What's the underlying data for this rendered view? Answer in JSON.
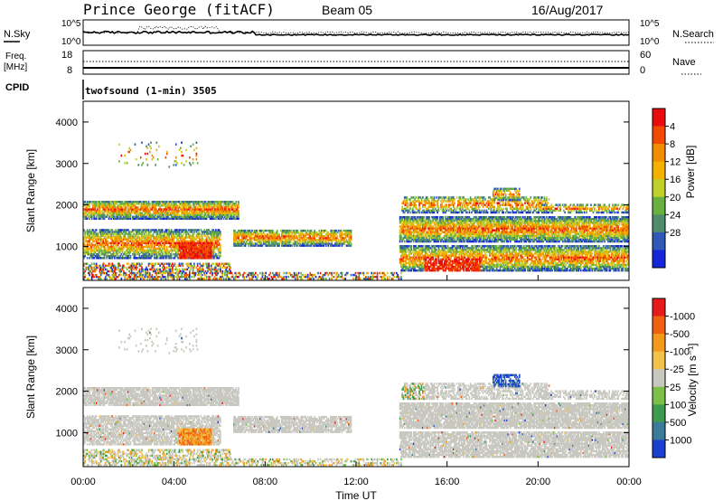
{
  "header": {
    "station": "Prince George (fitACF)",
    "beam": "Beam 05",
    "date": "16/Aug/2017"
  },
  "panel_nsky": {
    "left_label": "N.Sky",
    "right_label": "N.Search",
    "left_ticks": [
      "10^5",
      "10^0"
    ],
    "right_ticks": [
      "10^5",
      "10^0"
    ]
  },
  "panel_freq": {
    "left_label_1": "Freq.",
    "left_label_2": "[MHz]",
    "right_label": "Nave",
    "left_ticks": [
      "18",
      "8"
    ],
    "right_ticks": [
      "60",
      "0"
    ]
  },
  "cpid": {
    "label": "CPID",
    "value": "twofsound (1-min) 3505"
  },
  "chart_data": [
    {
      "type": "heatmap",
      "name": "power",
      "ylabel": "Slant Range [km]",
      "xlabel": "",
      "xlim": [
        "00:00",
        "24:00"
      ],
      "ylim": [
        180,
        4500
      ],
      "y_ticks": [
        "1000",
        "2000",
        "3000",
        "4000"
      ],
      "colorbar": {
        "label": "Power [dB]",
        "ticks": [
          "4",
          "8",
          "12",
          "16",
          "20",
          "24",
          "28"
        ],
        "colors": [
          "#1525d8",
          "#2f58b8",
          "#4f8d6a",
          "#69b13f",
          "#bfcf2c",
          "#f3b200",
          "#f18d00",
          "#f04a00",
          "#e90c0c"
        ]
      }
    },
    {
      "type": "heatmap",
      "name": "velocity",
      "ylabel": "Slant Range [km]",
      "xlabel": "Time UT",
      "xlim": [
        "00:00",
        "24:00"
      ],
      "ylim": [
        180,
        4500
      ],
      "x_ticks": [
        "00:00",
        "04:00",
        "08:00",
        "12:00",
        "16:00",
        "20:00",
        "00:00"
      ],
      "y_ticks": [
        "1000",
        "2000",
        "3000",
        "4000"
      ],
      "colorbar": {
        "label": "Velocity [m s⁻¹]",
        "ticks": [
          "1000",
          "500",
          "100",
          "25",
          "-25",
          "-100",
          "-500",
          "-1000"
        ],
        "colors": [
          "#1b3fcf",
          "#3a7a9a",
          "#3d9a4f",
          "#7cc048",
          "#c8c8c0",
          "#f2c24a",
          "#f39a1e",
          "#f06010",
          "#e71a1a"
        ]
      }
    }
  ]
}
